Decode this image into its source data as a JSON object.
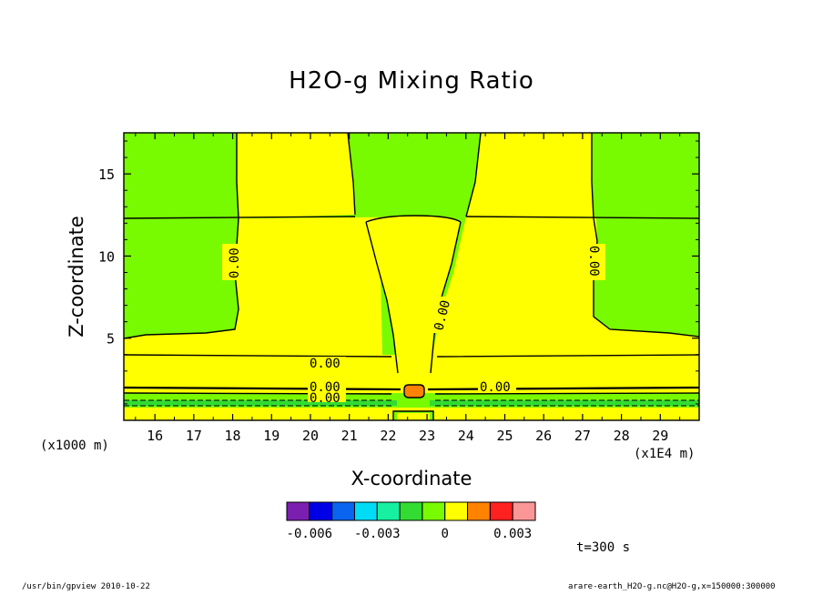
{
  "chart_data": {
    "type": "contour",
    "title": "H2O-g Mixing Ratio",
    "xlabel": "X-coordinate",
    "ylabel": "Z-coordinate",
    "x_unit_left": "(x1000 m)",
    "x_unit_right": "(x1E4 m)",
    "xlim": [
      15.2,
      30.0
    ],
    "ylim": [
      0.0,
      17.5
    ],
    "x_ticks": [
      "16",
      "17",
      "18",
      "19",
      "20",
      "21",
      "22",
      "23",
      "24",
      "25",
      "26",
      "27",
      "28",
      "29"
    ],
    "y_ticks": [
      "5",
      "10",
      "15"
    ],
    "contour_labels": [
      "0.00",
      "0.00",
      "0.00",
      "0.00",
      "0.00",
      "0.00",
      "0.00",
      "0.00"
    ],
    "colorbar": {
      "colors": [
        "#7a1fb0",
        "#0000e6",
        "#0a64f0",
        "#00dcf5",
        "#16f0a0",
        "#32dc32",
        "#78fa00",
        "#ffff00",
        "#ff8200",
        "#ff2020",
        "#fa9696"
      ],
      "tick_labels": [
        "-0.006",
        "-0.003",
        "0",
        "0.003"
      ]
    },
    "regions": {
      "green_color": "#78fa00",
      "yellow_color": "#ffff00",
      "orange_color": "#ff8200",
      "lightgreen_color": "#32dc32"
    },
    "timestamp": "t=300 s"
  },
  "footer": {
    "left": "/usr/bin/gpview   2010-10-22",
    "right": "arare-earth_H2O-g.nc@H2O-g,x=150000:300000"
  }
}
